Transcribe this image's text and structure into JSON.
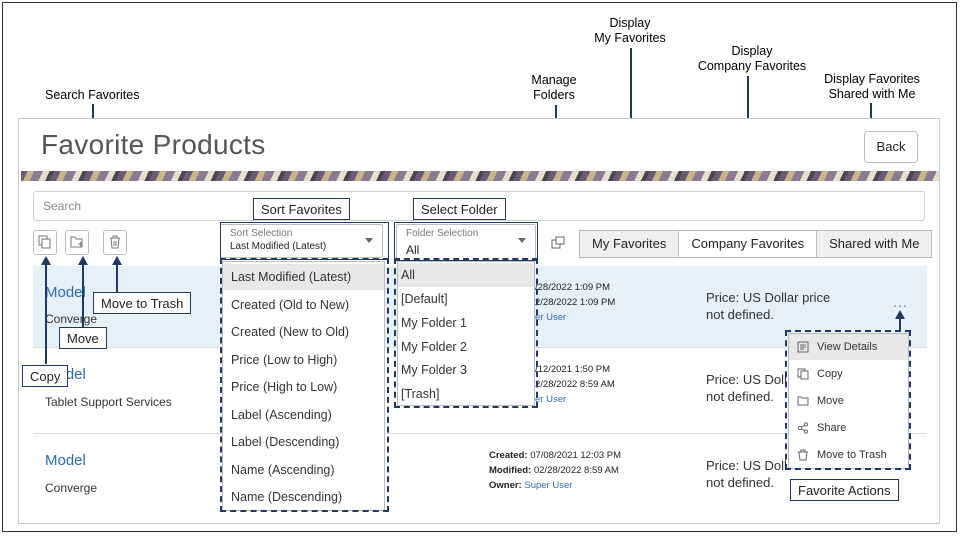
{
  "annotations": {
    "search_favorites": "Search Favorites",
    "manage_folders": [
      "Manage",
      "Folders"
    ],
    "display_my_favorites": [
      "Display",
      "My Favorites"
    ],
    "display_company_favorites": [
      "Display",
      "Company Favorites"
    ],
    "display_shared": [
      "Display Favorites",
      "Shared with Me"
    ],
    "sort_favorites": "Sort Favorites",
    "select_folder": "Select Folder",
    "move_to_trash": "Move to Trash",
    "move": "Move",
    "copy": "Copy",
    "favorite_actions": "Favorite Actions"
  },
  "page": {
    "title": "Favorite Products",
    "back_label": "Back",
    "search_placeholder": "Search"
  },
  "sort": {
    "label": "Sort Selection",
    "value": "Last Modified (Latest)",
    "options": [
      "Last Modified (Latest)",
      "Created (Old to New)",
      "Created (New to Old)",
      "Price (Low to High)",
      "Price (High to Low)",
      "Label (Ascending)",
      "Label (Descending)",
      "Name (Ascending)",
      "Name (Descending)"
    ]
  },
  "folder": {
    "label": "Folder Selection",
    "value": "All",
    "options": [
      "All",
      "[Default]",
      "My Folder 1",
      "My Folder 2",
      "My Folder 3",
      "[Trash]"
    ]
  },
  "tabs": [
    "My Favorites",
    "Company Favorites",
    "Shared with Me"
  ],
  "rows": [
    {
      "model": "Model",
      "sub": "Converge",
      "created_partial": "/28/2022 1:09 PM",
      "modified_partial": "2/28/2022 1:09 PM",
      "owner_partial": "er User",
      "price_line1": "Price: US Dollar price",
      "price_line2": "not defined."
    },
    {
      "model": "Model",
      "sub": "Tablet Support Services",
      "created_partial": "/12/2021 1:50 PM",
      "modified_partial": "2/28/2022 8:59 AM",
      "owner_partial": "er User",
      "price_line1": "Price: US Doll",
      "price_line2": "not defined."
    },
    {
      "model": "Model",
      "sub": "Converge",
      "created_label": "Created:",
      "created": "07/08/2021 12:03 PM",
      "modified_label": "Modified:",
      "modified": "02/28/2022 8:59 AM",
      "owner_label": "Owner:",
      "owner": "Super User",
      "price_line1": "Price: US Doll",
      "price_line2": "not defined."
    }
  ],
  "more_label": "...",
  "actions_menu": [
    "View Details",
    "Copy",
    "Move",
    "Share",
    "Move to Trash"
  ]
}
